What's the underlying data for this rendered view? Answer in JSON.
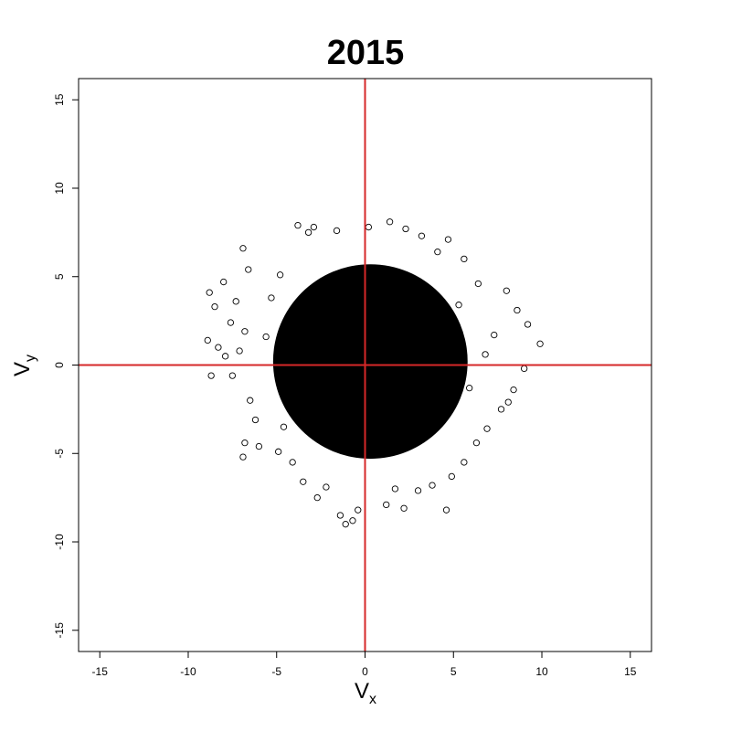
{
  "chart_data": {
    "type": "scatter",
    "title": "2015",
    "xlabel": {
      "main": "V",
      "sub": "x"
    },
    "ylabel": {
      "main": "V",
      "sub": "y"
    },
    "xlim": [
      -16.2,
      16.2
    ],
    "ylim": [
      -16.2,
      16.2
    ],
    "x_ticks": [
      -15,
      -10,
      -5,
      0,
      5,
      10,
      15
    ],
    "y_ticks": [
      -15,
      -10,
      -5,
      0,
      5,
      10,
      15
    ],
    "grid": false,
    "marker": "open-circle",
    "point_color": "#000000",
    "reference_lines": {
      "x": 0,
      "y": 0,
      "color": "#d62728"
    },
    "point_cloud_summary": {
      "center": [
        0.3,
        0.2
      ],
      "dense_radius": 5.5,
      "x_range": [
        -9,
        10
      ],
      "y_range": [
        -9.3,
        8
      ]
    },
    "series": [
      {
        "values_xy": [
          [
            -8.9,
            1.4
          ],
          [
            -8.8,
            4.1
          ],
          [
            -8.5,
            3.3
          ],
          [
            -8.3,
            1.0
          ],
          [
            -8.0,
            4.7
          ],
          [
            -7.9,
            0.5
          ],
          [
            -7.6,
            2.4
          ],
          [
            -7.3,
            3.6
          ],
          [
            -7.1,
            0.8
          ],
          [
            -6.9,
            6.6
          ],
          [
            -6.8,
            1.9
          ],
          [
            -6.6,
            5.4
          ],
          [
            -6.9,
            -5.2
          ],
          [
            -6.8,
            -4.4
          ],
          [
            -6.5,
            -2.0
          ],
          [
            -6.2,
            -3.1
          ],
          [
            -6.0,
            -4.6
          ],
          [
            -7.5,
            -0.6
          ],
          [
            -3.8,
            7.9
          ],
          [
            -3.2,
            7.5
          ],
          [
            -2.9,
            7.8
          ],
          [
            -1.6,
            7.6
          ],
          [
            0.2,
            7.8
          ],
          [
            1.4,
            8.1
          ],
          [
            2.3,
            7.7
          ],
          [
            3.2,
            7.3
          ],
          [
            4.7,
            7.1
          ],
          [
            5.6,
            6.0
          ],
          [
            6.4,
            4.6
          ],
          [
            8.0,
            4.2
          ],
          [
            8.6,
            3.1
          ],
          [
            9.2,
            2.3
          ],
          [
            9.9,
            1.2
          ],
          [
            9.0,
            -0.2
          ],
          [
            8.4,
            -1.4
          ],
          [
            8.1,
            -2.1
          ],
          [
            7.7,
            -2.5
          ],
          [
            6.9,
            -3.6
          ],
          [
            6.3,
            -4.4
          ],
          [
            5.6,
            -5.5
          ],
          [
            4.9,
            -6.3
          ],
          [
            4.6,
            -8.2
          ],
          [
            3.0,
            -7.1
          ],
          [
            2.2,
            -8.1
          ],
          [
            1.2,
            -7.9
          ],
          [
            -0.4,
            -8.2
          ],
          [
            -0.7,
            -8.8
          ],
          [
            -1.1,
            -9.0
          ],
          [
            -1.4,
            -8.5
          ],
          [
            -2.7,
            -7.5
          ],
          [
            -3.5,
            -6.6
          ],
          [
            -4.1,
            -5.5
          ],
          [
            -4.9,
            -4.9
          ],
          [
            -8.7,
            -0.6
          ],
          [
            -5.3,
            3.8
          ],
          [
            -4.8,
            5.1
          ],
          [
            -4.6,
            -3.5
          ],
          [
            5.3,
            3.4
          ],
          [
            5.9,
            -1.3
          ],
          [
            7.3,
            1.7
          ],
          [
            4.1,
            6.4
          ],
          [
            -2.2,
            -6.9
          ],
          [
            1.7,
            -7.0
          ],
          [
            3.8,
            -6.8
          ],
          [
            -5.6,
            1.6
          ],
          [
            6.8,
            0.6
          ]
        ]
      }
    ]
  }
}
